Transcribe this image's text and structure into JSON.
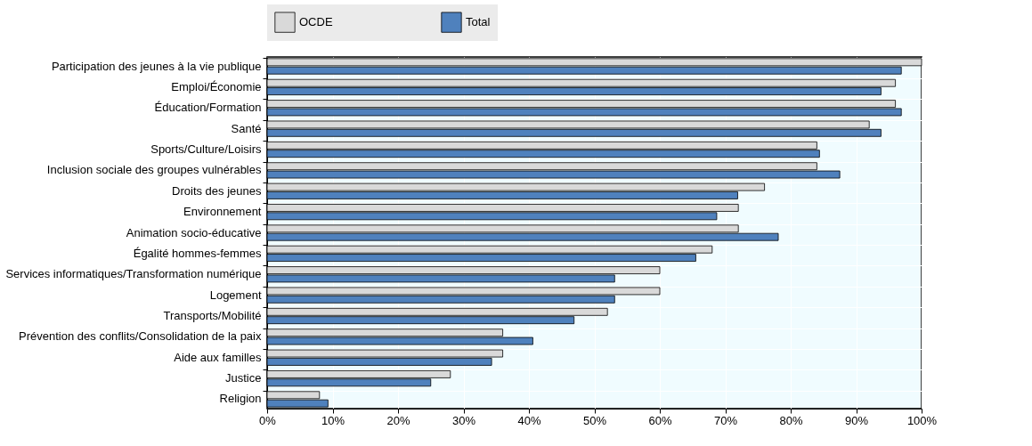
{
  "chart_data": {
    "type": "bar",
    "orientation": "horizontal",
    "categories": [
      "Participation des jeunes à la vie publique",
      "Emploi/Économie",
      "Éducation/Formation",
      "Santé",
      "Sports/Culture/Loisirs",
      "Inclusion sociale des groupes vulnérables",
      "Droits des jeunes",
      "Environnement",
      "Animation socio-éducative",
      "Égalité hommes-femmes",
      "Services informatiques/Transformation numérique",
      "Logement",
      "Transports/Mobilité",
      "Prévention des conflits/Consolidation de la paix",
      "Aide aux familles",
      "Justice",
      "Religion"
    ],
    "series": [
      {
        "name": "OCDE",
        "color": "#d9d9d9",
        "values": [
          100,
          96,
          96,
          92,
          84,
          84,
          76,
          72,
          72,
          68,
          60,
          60,
          52,
          36,
          36,
          28,
          8
        ]
      },
      {
        "name": "Total",
        "color": "#4f81bd",
        "values": [
          96.9,
          93.8,
          96.9,
          93.8,
          84.4,
          87.5,
          71.9,
          68.7,
          78.1,
          65.5,
          53.1,
          53.1,
          46.9,
          40.6,
          34.3,
          25,
          9.3
        ]
      }
    ],
    "xlim": [
      0,
      100
    ],
    "xticks": [
      {
        "value": 0,
        "label": "0%"
      },
      {
        "value": 10,
        "label": "10%"
      },
      {
        "value": 20,
        "label": "20%"
      },
      {
        "value": 30,
        "label": "30%"
      },
      {
        "value": 40,
        "label": "40%"
      },
      {
        "value": 50,
        "label": "50%"
      },
      {
        "value": 60,
        "label": "60%"
      },
      {
        "value": 70,
        "label": "70%"
      },
      {
        "value": 80,
        "label": "80%"
      },
      {
        "value": 90,
        "label": "90%"
      },
      {
        "value": 100,
        "label": "100%"
      }
    ],
    "grid": true,
    "legend": "top"
  }
}
